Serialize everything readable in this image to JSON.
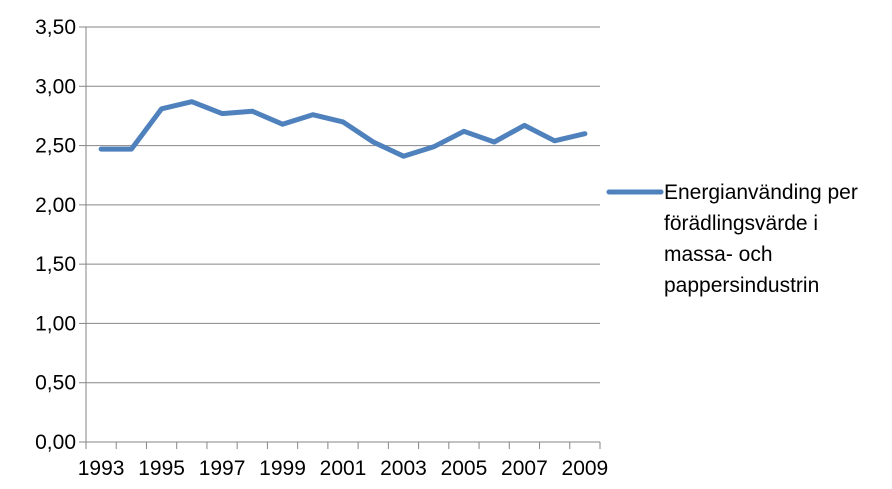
{
  "chart_data": {
    "type": "line",
    "title": "",
    "xlabel": "",
    "ylabel": "",
    "x": [
      1993,
      1994,
      1995,
      1996,
      1997,
      1998,
      1999,
      2000,
      2001,
      2002,
      2003,
      2004,
      2005,
      2006,
      2007,
      2008,
      2009
    ],
    "x_tick_labels": [
      "1993",
      "1995",
      "1997",
      "1999",
      "2001",
      "2003",
      "2005",
      "2007",
      "2009"
    ],
    "y_tick_labels": [
      "0,00",
      "0,50",
      "1,00",
      "1,50",
      "2,00",
      "2,50",
      "3,00",
      "3,50"
    ],
    "ylim": [
      0,
      3.5
    ],
    "grid": "horizontal",
    "legend_position": "right",
    "series": [
      {
        "name": "Energianvänding per förädlingsvärde i massa- och pappersindustrin",
        "name_lines": [
          "Energianvänding per",
          "förädlingsvärde i",
          "massa- och",
          "pappersindustrin"
        ],
        "color": "#4f81bd",
        "values": [
          2.47,
          2.47,
          2.81,
          2.87,
          2.77,
          2.79,
          2.68,
          2.76,
          2.7,
          2.53,
          2.41,
          2.49,
          2.62,
          2.53,
          2.67,
          2.54,
          2.6
        ]
      }
    ]
  }
}
